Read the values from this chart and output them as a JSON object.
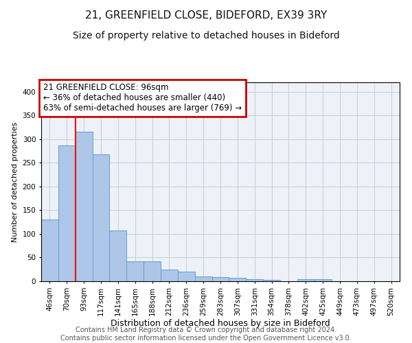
{
  "title1": "21, GREENFIELD CLOSE, BIDEFORD, EX39 3RY",
  "title2": "Size of property relative to detached houses in Bideford",
  "xlabel": "Distribution of detached houses by size in Bideford",
  "ylabel": "Number of detached properties",
  "footnote": "Contains HM Land Registry data © Crown copyright and database right 2024.\nContains public sector information licensed under the Open Government Licence v3.0.",
  "categories": [
    "46sqm",
    "70sqm",
    "93sqm",
    "117sqm",
    "141sqm",
    "165sqm",
    "188sqm",
    "212sqm",
    "236sqm",
    "259sqm",
    "283sqm",
    "307sqm",
    "331sqm",
    "354sqm",
    "378sqm",
    "402sqm",
    "425sqm",
    "449sqm",
    "473sqm",
    "497sqm",
    "520sqm"
  ],
  "values": [
    130,
    287,
    315,
    268,
    107,
    42,
    42,
    25,
    20,
    10,
    8,
    7,
    5,
    3,
    0,
    4,
    4,
    0,
    0,
    0,
    0
  ],
  "bar_color": "#aec6e8",
  "bar_edge_color": "#5a9fd4",
  "red_line_x": 1.5,
  "annotation_text": "21 GREENFIELD CLOSE: 96sqm\n← 36% of detached houses are smaller (440)\n63% of semi-detached houses are larger (769) →",
  "annotation_box_color": "#ffffff",
  "annotation_box_edge": "#cc0000",
  "ylim": [
    0,
    420
  ],
  "yticks": [
    0,
    50,
    100,
    150,
    200,
    250,
    300,
    350,
    400
  ],
  "grid_color": "#c8d0dc",
  "bg_color": "#eef2f8",
  "title1_fontsize": 11,
  "title2_fontsize": 10,
  "xlabel_fontsize": 9,
  "ylabel_fontsize": 8,
  "tick_fontsize": 7.5,
  "footnote_fontsize": 7
}
